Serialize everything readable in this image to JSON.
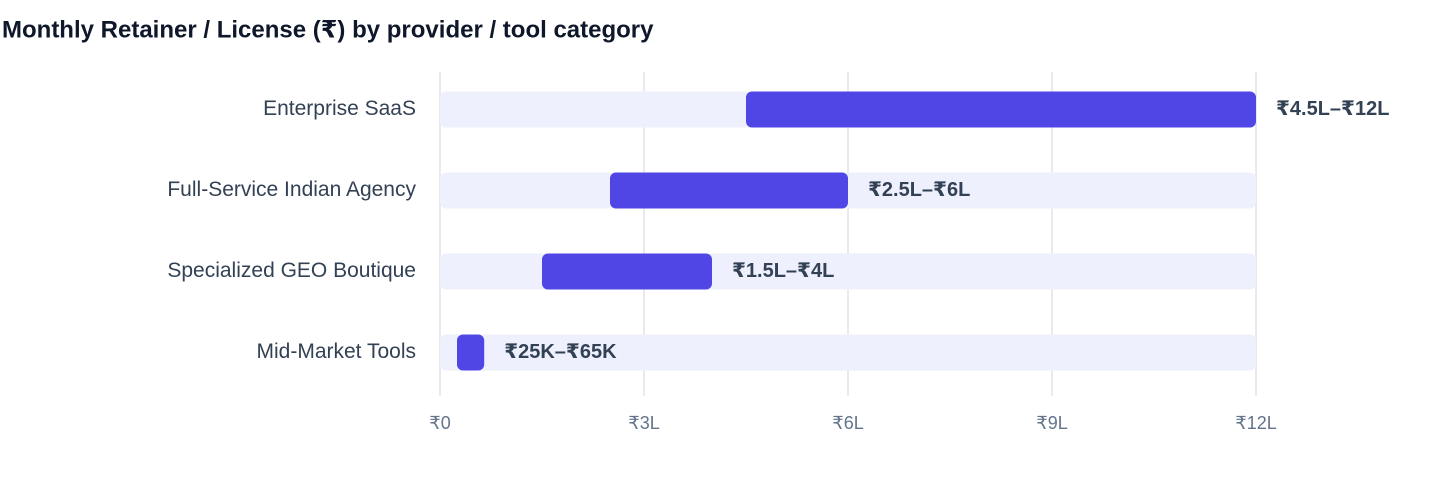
{
  "chart_data": {
    "type": "range",
    "title": "Monthly Retainer / License (₹) by provider / tool category",
    "categories": [
      "Enterprise SaaS",
      "Full-Service Indian Agency",
      "Specialized GEO Boutique",
      "Mid-Market Tools"
    ],
    "values": [
      [
        450000,
        1200000
      ],
      [
        250000,
        600000
      ],
      [
        150000,
        400000
      ],
      [
        25000,
        65000
      ]
    ],
    "value_labels": [
      "₹4.5L–₹12L",
      "₹2.5L–₹6L",
      "₹1.5L–₹4L",
      "₹25K–₹65K"
    ],
    "color": "#4f46e5",
    "xlim": [
      0,
      1200000
    ],
    "xticks": [
      {
        "value": 0,
        "label": "₹0"
      },
      {
        "value": 300000,
        "label": "₹3L"
      },
      {
        "value": 600000,
        "label": "₹6L"
      },
      {
        "value": 900000,
        "label": "₹9L"
      },
      {
        "value": 1200000,
        "label": "₹12L"
      }
    ],
    "grid": true
  }
}
